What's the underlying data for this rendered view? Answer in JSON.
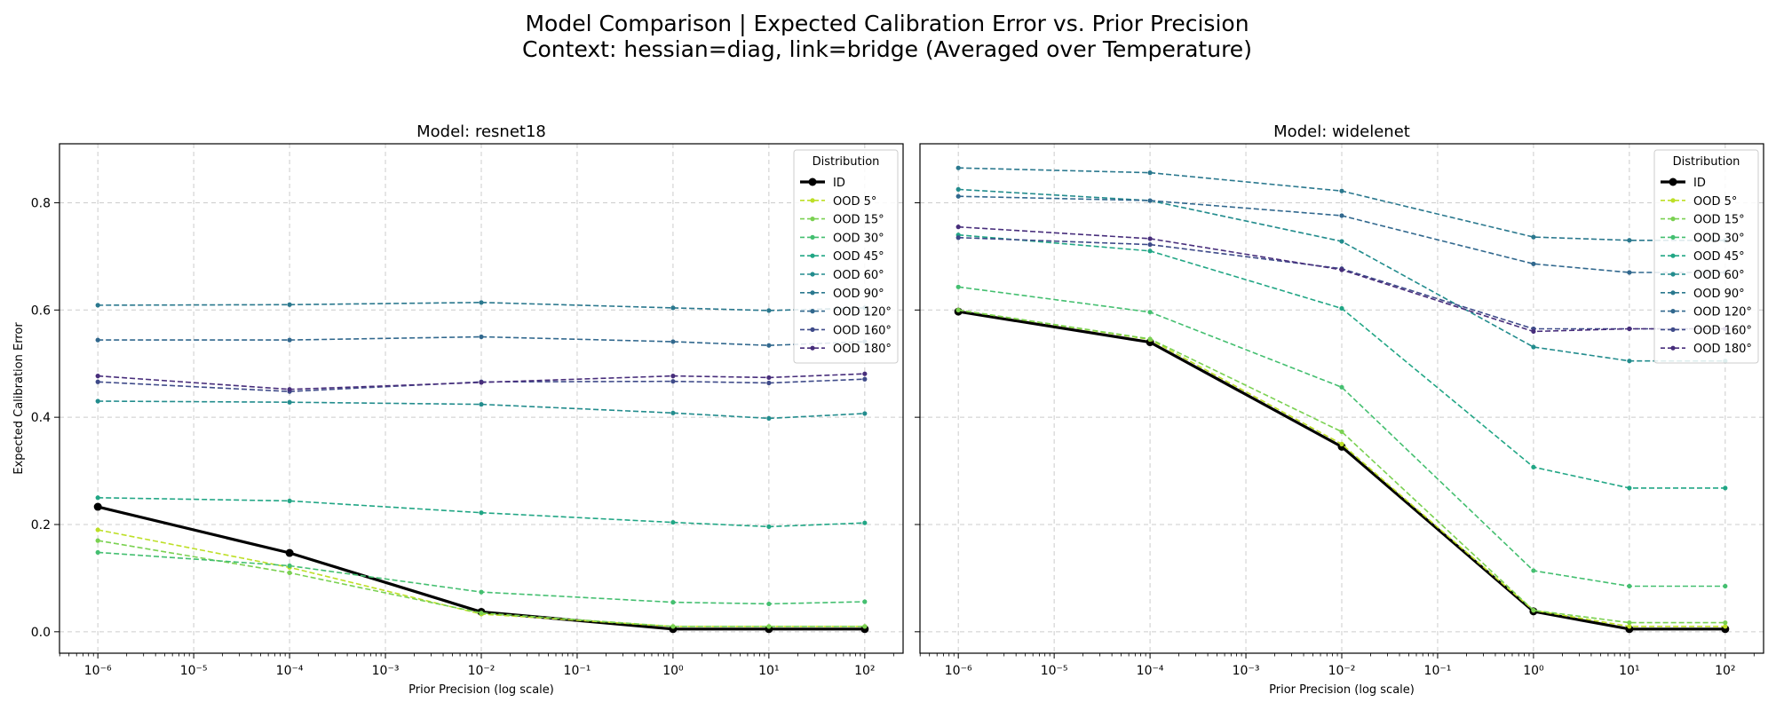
{
  "figure": {
    "title_line1": "Model Comparison | Expected Calibration Error vs. Prior Precision",
    "title_line2": "Context: hessian=diag, link=bridge (Averaged over Temperature)"
  },
  "colors": {
    "ID": "#000000",
    "OOD 5°": "#bddf26",
    "OOD 15°": "#7ad151",
    "OOD 30°": "#44bf70",
    "OOD 45°": "#21a685",
    "OOD 60°": "#228c8d",
    "OOD 90°": "#2a788e",
    "OOD 120°": "#31688e",
    "OOD 160°": "#3e4a89",
    "OOD 180°": "#472d7b"
  },
  "chart_data": [
    {
      "type": "line",
      "title": "Model: resnet18",
      "xlabel": "Prior Precision (log scale)",
      "ylabel": "Expected Calibration Error",
      "xscale": "log",
      "xlim_exponents": [
        -6.4,
        2.4
      ],
      "ylim": [
        -0.04,
        0.91
      ],
      "xticks": [
        "10⁻⁶",
        "10⁻⁵",
        "10⁻⁴",
        "10⁻³",
        "10⁻²",
        "10⁻¹",
        "10⁰",
        "10¹",
        "10²"
      ],
      "yticks": [
        "0.0",
        "0.2",
        "0.4",
        "0.6",
        "0.8"
      ],
      "grid": true,
      "legend_title": "Distribution",
      "legend_position": "upper right",
      "x": [
        1e-06,
        0.0001,
        0.01,
        1,
        10,
        100
      ],
      "series": [
        {
          "name": "ID",
          "values": [
            0.233,
            0.147,
            0.037,
            0.005,
            0.005,
            0.005
          ]
        },
        {
          "name": "OOD 5°",
          "values": [
            0.19,
            0.12,
            0.033,
            0.01,
            0.01,
            0.01
          ]
        },
        {
          "name": "OOD 15°",
          "values": [
            0.17,
            0.11,
            0.035,
            0.01,
            0.01,
            0.01
          ]
        },
        {
          "name": "OOD 30°",
          "values": [
            0.148,
            0.123,
            0.074,
            0.055,
            0.052,
            0.056
          ]
        },
        {
          "name": "OOD 45°",
          "values": [
            0.25,
            0.244,
            0.222,
            0.204,
            0.196,
            0.203
          ]
        },
        {
          "name": "OOD 60°",
          "values": [
            0.43,
            0.428,
            0.424,
            0.408,
            0.398,
            0.407
          ]
        },
        {
          "name": "OOD 90°",
          "values": [
            0.609,
            0.61,
            0.614,
            0.604,
            0.599,
            0.604
          ]
        },
        {
          "name": "OOD 120°",
          "values": [
            0.544,
            0.544,
            0.55,
            0.541,
            0.534,
            0.541
          ]
        },
        {
          "name": "OOD 160°",
          "values": [
            0.466,
            0.448,
            0.466,
            0.467,
            0.464,
            0.471
          ]
        },
        {
          "name": "OOD 180°",
          "values": [
            0.477,
            0.452,
            0.465,
            0.477,
            0.474,
            0.481
          ]
        }
      ]
    },
    {
      "type": "line",
      "title": "Model: widelenet",
      "xlabel": "Prior Precision (log scale)",
      "ylabel": "",
      "xscale": "log",
      "xlim_exponents": [
        -6.4,
        2.4
      ],
      "ylim": [
        -0.04,
        0.91
      ],
      "xticks": [
        "10⁻⁶",
        "10⁻⁵",
        "10⁻⁴",
        "10⁻³",
        "10⁻²",
        "10⁻¹",
        "10⁰",
        "10¹",
        "10²"
      ],
      "yticks": [],
      "grid": true,
      "legend_title": "Distribution",
      "legend_position": "upper right",
      "x": [
        1e-06,
        0.0001,
        0.01,
        1,
        10,
        100
      ],
      "series": [
        {
          "name": "ID",
          "values": [
            0.597,
            0.54,
            0.345,
            0.038,
            0.005,
            0.005
          ]
        },
        {
          "name": "OOD 5°",
          "values": [
            0.6,
            0.545,
            0.35,
            0.04,
            0.01,
            0.01
          ]
        },
        {
          "name": "OOD 15°",
          "values": [
            0.6,
            0.546,
            0.373,
            0.04,
            0.017,
            0.017
          ]
        },
        {
          "name": "OOD 30°",
          "values": [
            0.643,
            0.596,
            0.456,
            0.114,
            0.085,
            0.085
          ]
        },
        {
          "name": "OOD 45°",
          "values": [
            0.74,
            0.71,
            0.603,
            0.307,
            0.268,
            0.268
          ]
        },
        {
          "name": "OOD 60°",
          "values": [
            0.825,
            0.804,
            0.728,
            0.531,
            0.505,
            0.505
          ]
        },
        {
          "name": "OOD 90°",
          "values": [
            0.865,
            0.856,
            0.822,
            0.736,
            0.73,
            0.73
          ]
        },
        {
          "name": "OOD 120°",
          "values": [
            0.812,
            0.804,
            0.776,
            0.686,
            0.67,
            0.67
          ]
        },
        {
          "name": "OOD 160°",
          "values": [
            0.735,
            0.722,
            0.677,
            0.565,
            0.565,
            0.565
          ]
        },
        {
          "name": "OOD 180°",
          "values": [
            0.755,
            0.733,
            0.675,
            0.56,
            0.565,
            0.565
          ]
        }
      ]
    }
  ]
}
